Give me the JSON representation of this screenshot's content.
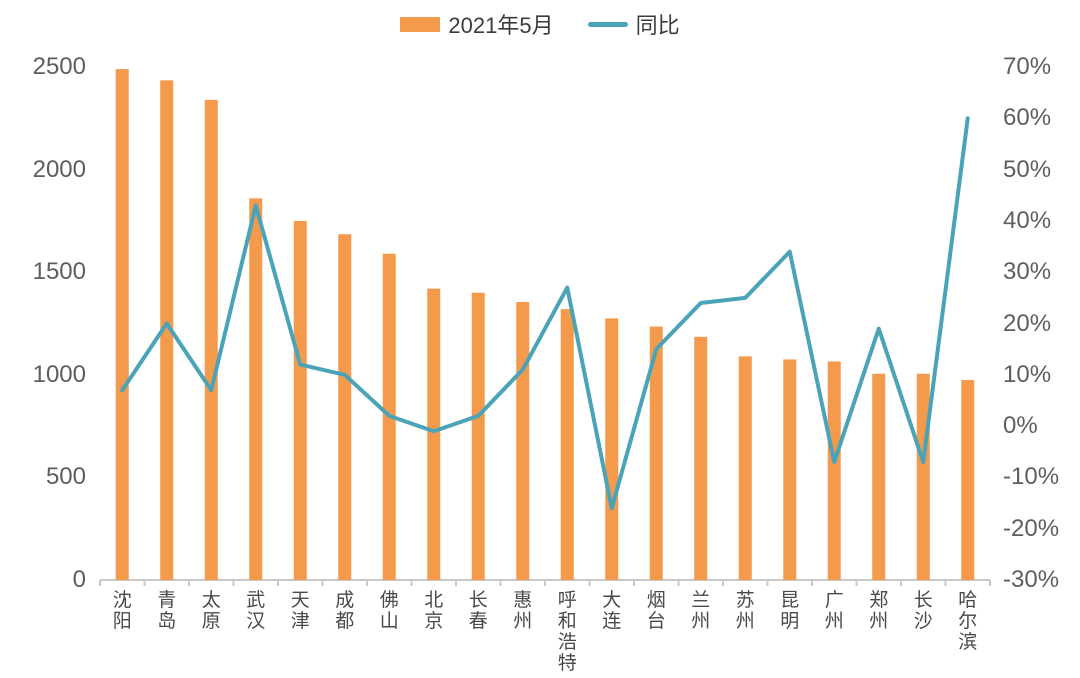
{
  "legend": {
    "bar_series_label": "2021年5月",
    "line_series_label": "同比"
  },
  "colors": {
    "bar": "#F39A4D",
    "line": "#4BA3B8",
    "axis_line": "#C9C9C9",
    "axis_text": "#5E5E5E",
    "x_label_text": "#4A4A4A"
  },
  "chart_data": {
    "type": "bar",
    "subtype": "bar-line-combo",
    "categories": [
      "沈阳",
      "青岛",
      "太原",
      "武汉",
      "天津",
      "成都",
      "佛山",
      "北京",
      "长春",
      "惠州",
      "呼和浩特",
      "大连",
      "烟台",
      "兰州",
      "苏州",
      "昆明",
      "广州",
      "郑州",
      "长沙",
      "哈尔滨"
    ],
    "series": [
      {
        "name": "2021年5月",
        "type": "bar",
        "axis": "left",
        "values": [
          2490,
          2435,
          2340,
          1860,
          1750,
          1685,
          1590,
          1420,
          1400,
          1355,
          1320,
          1275,
          1235,
          1185,
          1090,
          1075,
          1065,
          1005,
          1005,
          975
        ]
      },
      {
        "name": "同比",
        "type": "line",
        "axis": "right",
        "unit": "%",
        "values": [
          7,
          20,
          7,
          43,
          12,
          10,
          2,
          -1,
          2,
          11,
          27,
          -16,
          15,
          24,
          25,
          34,
          -7,
          19,
          -7,
          60
        ]
      }
    ],
    "y_axis_left": {
      "min": 0,
      "max": 2500,
      "step": 500,
      "tick_labels": [
        "0",
        "500",
        "1000",
        "1500",
        "2000",
        "2500"
      ]
    },
    "y_axis_right": {
      "min": -30,
      "max": 70,
      "step": 10,
      "tick_labels": [
        "-30%",
        "-20%",
        "-10%",
        "0%",
        "10%",
        "20%",
        "30%",
        "40%",
        "50%",
        "60%",
        "70%"
      ]
    },
    "title": "",
    "xlabel": "",
    "ylabel": "",
    "grid": false,
    "legend_position": "top-center"
  }
}
